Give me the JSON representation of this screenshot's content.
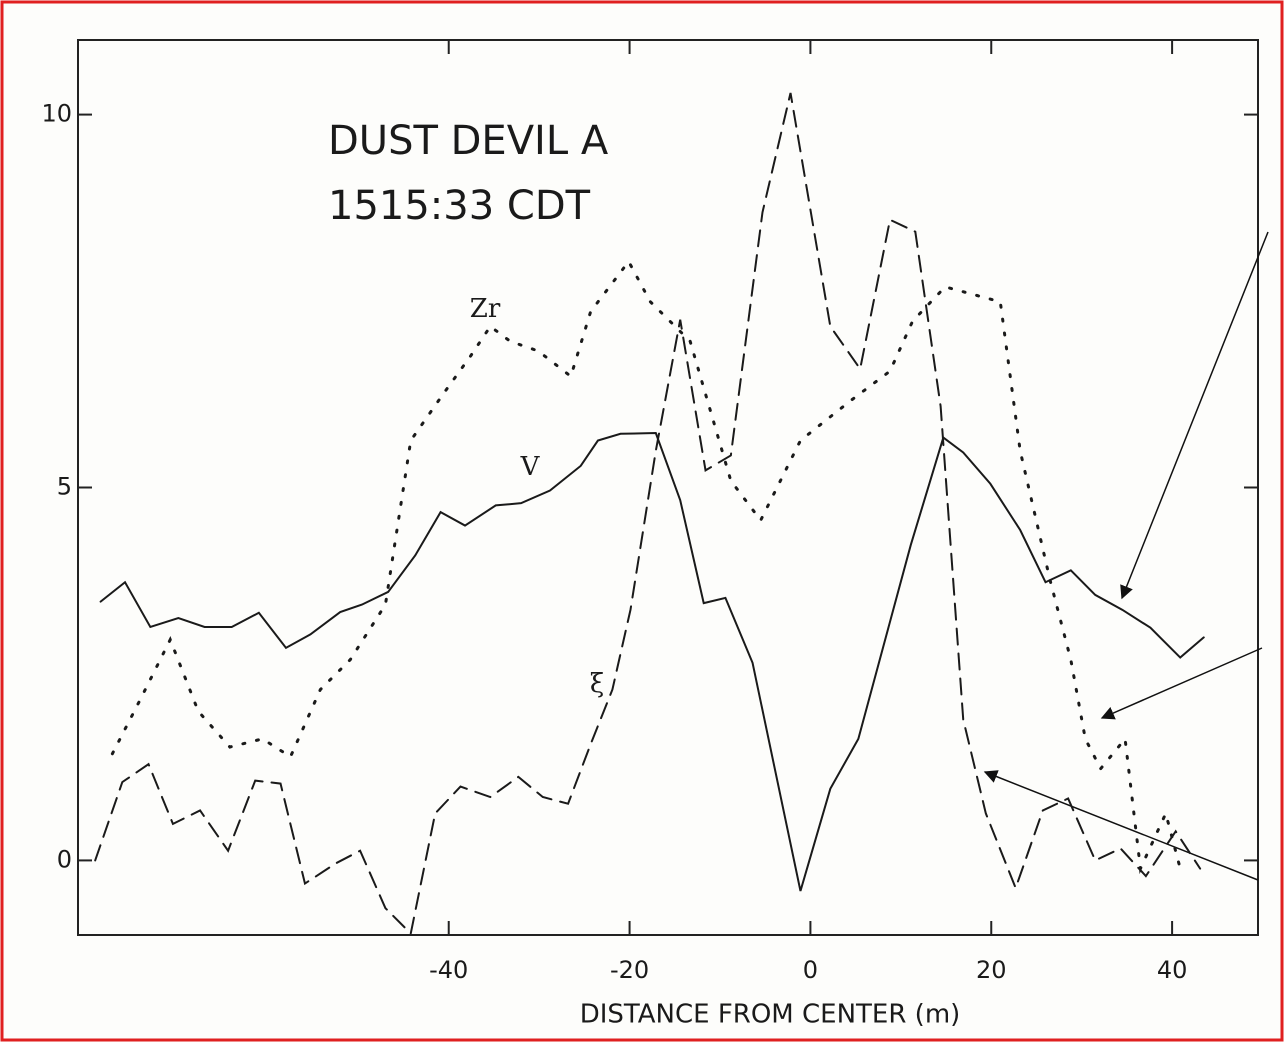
{
  "chart_data": {
    "type": "line",
    "title": [
      "DUST DEVIL A",
      "1515:33 CDT"
    ],
    "x_label": "DISTANCE FROM CENTER (m)",
    "xlim": [
      -81,
      49.5
    ],
    "ylim": [
      -1,
      11
    ],
    "xticks": [
      -40,
      -20,
      0,
      20,
      40
    ],
    "yticks": [
      0,
      5,
      10
    ],
    "series": [
      {
        "name": "V",
        "color": "#1a1a1a",
        "dash": "solid",
        "x": [
          -78.5,
          -75.8,
          -73,
          -69.9,
          -67,
          -64,
          -61,
          -58,
          -55.3,
          -52,
          -49.6,
          -46.7,
          -43.7,
          -40.9,
          -38.2,
          -34.8,
          -32,
          -28.8,
          -25.4,
          -23.5,
          -21,
          -17.1,
          -14.4,
          -11.8,
          -9.4,
          -6.4,
          -1.1,
          2.2,
          5.3,
          11.1,
          14.7,
          16.9,
          19.9,
          23.2,
          26,
          28.8,
          31.5,
          34.5,
          37.6,
          40.9,
          43.5
        ],
        "values": [
          3.47,
          3.73,
          3.13,
          3.25,
          3.13,
          3.13,
          3.32,
          2.85,
          3.03,
          3.33,
          3.43,
          3.6,
          4.09,
          4.67,
          4.49,
          4.76,
          4.79,
          4.96,
          5.29,
          5.63,
          5.72,
          5.73,
          4.83,
          3.45,
          3.52,
          2.65,
          -0.41,
          0.96,
          1.63,
          4.23,
          5.67,
          5.47,
          5.05,
          4.43,
          3.73,
          3.89,
          3.56,
          3.36,
          3.12,
          2.72,
          2.99
        ]
      },
      {
        "name": "ξ",
        "color": "#1a1a1a",
        "dash": "dashed",
        "x": [
          -79.1,
          -76.1,
          -73.2,
          -70.5,
          -67.5,
          -64.4,
          -61.4,
          -58.6,
          -55.9,
          -52.5,
          -49.8,
          -47,
          -44.2,
          -41.5,
          -38.7,
          -35.4,
          -32.3,
          -29.6,
          -26.8,
          -24.3,
          -21.9,
          -19.9,
          -17.1,
          -14.4,
          -11.6,
          -8.8,
          -5.3,
          -2.2,
          2.2,
          5.5,
          8.8,
          11.6,
          14.4,
          16.9,
          19.4,
          22.7,
          25.7,
          28.5,
          31.5,
          34.3,
          37.1,
          40.4,
          43.1
        ],
        "values": [
          0,
          1.05,
          1.29,
          0.49,
          0.67,
          0.13,
          1.07,
          1.03,
          -0.31,
          -0.04,
          0.13,
          -0.64,
          -0.98,
          0.63,
          0.99,
          0.85,
          1.12,
          0.85,
          0.76,
          1.56,
          2.29,
          3.36,
          5.49,
          7.25,
          5.23,
          5.43,
          8.69,
          10.29,
          7.16,
          6.59,
          8.59,
          8.43,
          6.09,
          1.89,
          0.63,
          -0.37,
          0.67,
          0.83,
          0,
          0.16,
          -0.21,
          0.39,
          -0.11
        ]
      },
      {
        "name": "Zr",
        "color": "#1a1a1a",
        "dash": "dotted",
        "x": [
          -77.2,
          -74.1,
          -70.8,
          -67.7,
          -64.2,
          -60.6,
          -57.5,
          -54.2,
          -50.9,
          -47,
          -44.2,
          -40.4,
          -37.6,
          -35.4,
          -33.2,
          -30.1,
          -26.5,
          -24.3,
          -20.1,
          -17.7,
          -13.3,
          -8.8,
          -5.5,
          -1.1,
          4.4,
          8.8,
          11.3,
          14.9,
          21,
          23.2,
          26.5,
          28.8,
          30.4,
          32.1,
          34.8,
          36.5,
          39.3,
          40.9
        ],
        "values": [
          1.43,
          2.16,
          2.96,
          2,
          1.52,
          1.63,
          1.39,
          2.29,
          2.69,
          3.43,
          5.63,
          6.29,
          6.76,
          7.16,
          6.96,
          6.83,
          6.49,
          7.36,
          8.03,
          7.49,
          6.96,
          5.09,
          4.56,
          5.63,
          6.16,
          6.56,
          7.23,
          7.69,
          7.49,
          5.49,
          3.76,
          2.69,
          1.63,
          1.23,
          1.63,
          -0.11,
          0.63,
          -0.11
        ]
      }
    ]
  }
}
